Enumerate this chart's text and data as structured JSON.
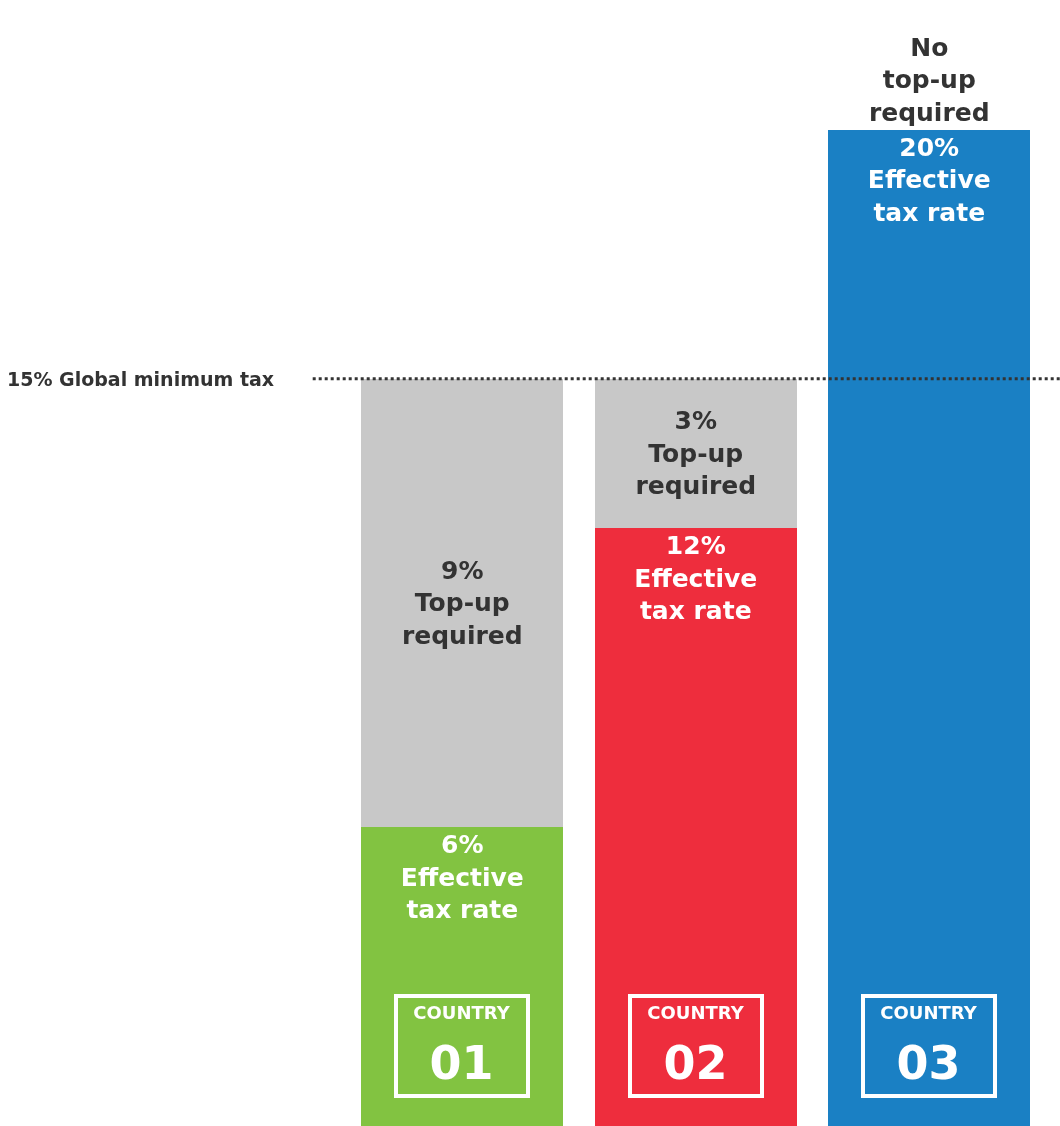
{
  "chart_data": {
    "type": "bar",
    "stacked": true,
    "categories": [
      "COUNTRY\n01",
      "COUNTRY\n02",
      "COUNTRY\n03"
    ],
    "series": [
      {
        "colors": [
          "#82c341",
          "#ee2d3d",
          "#1a80c4"
        ],
        "values": [
          6,
          12,
          20
        ],
        "value_labels": [
          "6%\nEffective\ntax rate",
          "12%\nEffective\ntax rate",
          "20%\nEffective\ntax rate"
        ]
      },
      {
        "color": "#c8c8c8",
        "values": [
          9,
          3,
          0
        ],
        "value_labels": [
          "9%\nTop-up\nrequired",
          "3%\nTop-up\nrequired",
          "No\ntop-up\nrequired"
        ]
      }
    ],
    "ylim": [
      0,
      22.6
    ],
    "ref_lines": [
      {
        "axis": "y",
        "value": 15,
        "label": "15% Global minimum tax",
        "color": "#333333",
        "line_style": "dotted"
      }
    ],
    "tick_labels": false
  }
}
